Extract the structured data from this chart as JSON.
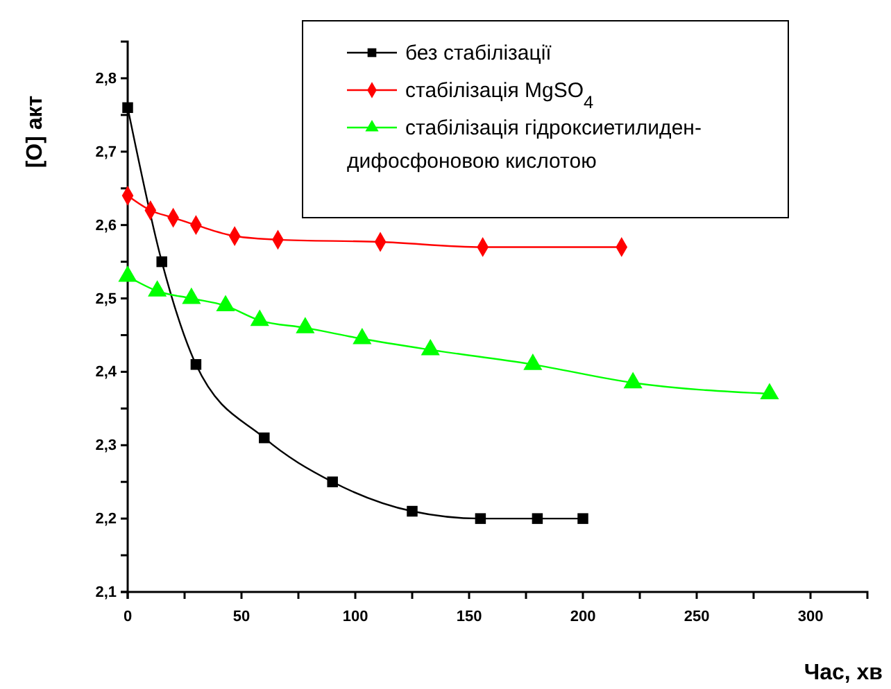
{
  "chart_data": {
    "type": "line",
    "xlabel": "Час, хв",
    "ylabel": "[O] акт",
    "xlim": [
      0,
      325
    ],
    "ylim": [
      2.1,
      2.85
    ],
    "xticks": [
      0,
      {
        "value": 25,
        "label": null
      },
      50,
      {
        "value": 75,
        "label": null
      },
      100,
      {
        "value": 125,
        "label": null
      },
      150,
      {
        "value": 175,
        "label": null
      },
      200,
      {
        "value": 225,
        "label": null
      },
      250,
      {
        "value": 275,
        "label": null
      },
      300
    ],
    "yticks": [
      {
        "value": 2.1,
        "label": "2,1"
      },
      {
        "value": 2.15,
        "label": null
      },
      {
        "value": 2.2,
        "label": "2,2"
      },
      {
        "value": 2.25,
        "label": null
      },
      {
        "value": 2.3,
        "label": "2,3"
      },
      {
        "value": 2.35,
        "label": null
      },
      {
        "value": 2.4,
        "label": "2,4"
      },
      {
        "value": 2.45,
        "label": null
      },
      {
        "value": 2.5,
        "label": "2,5"
      },
      {
        "value": 2.55,
        "label": null
      },
      {
        "value": 2.6,
        "label": "2,6"
      },
      {
        "value": 2.65,
        "label": null
      },
      {
        "value": 2.7,
        "label": "2,7"
      },
      {
        "value": 2.75,
        "label": null
      },
      {
        "value": 2.8,
        "label": "2,8"
      }
    ],
    "legend": "top right",
    "grid": false,
    "line_style": "solid",
    "series": [
      {
        "name": "без стабілізації",
        "color": "#000000",
        "marker": "square",
        "x": [
          0,
          15,
          30,
          60,
          90,
          125,
          155,
          180,
          200
        ],
        "values": [
          2.76,
          2.55,
          2.41,
          2.31,
          2.25,
          2.21,
          2.2,
          2.2,
          2.2
        ]
      },
      {
        "name": "стабілізація MgSO$_{4}$",
        "color": "#ff0000",
        "marker": "diamond",
        "x": [
          0,
          10,
          20,
          30,
          47,
          66,
          111,
          156,
          217
        ],
        "values": [
          2.64,
          2.62,
          2.61,
          2.6,
          2.585,
          2.58,
          2.577,
          2.57,
          2.57
        ]
      },
      {
        "name": "стабілізація гідроксиетилиден-дифосфоновою кислотою",
        "color": "#00ff00",
        "marker": "triangle",
        "x": [
          0,
          13,
          28,
          43,
          58,
          78,
          103,
          133,
          178,
          222,
          282
        ],
        "values": [
          2.53,
          2.51,
          2.5,
          2.49,
          2.47,
          2.46,
          2.445,
          2.43,
          2.41,
          2.385,
          2.37
        ]
      }
    ]
  }
}
